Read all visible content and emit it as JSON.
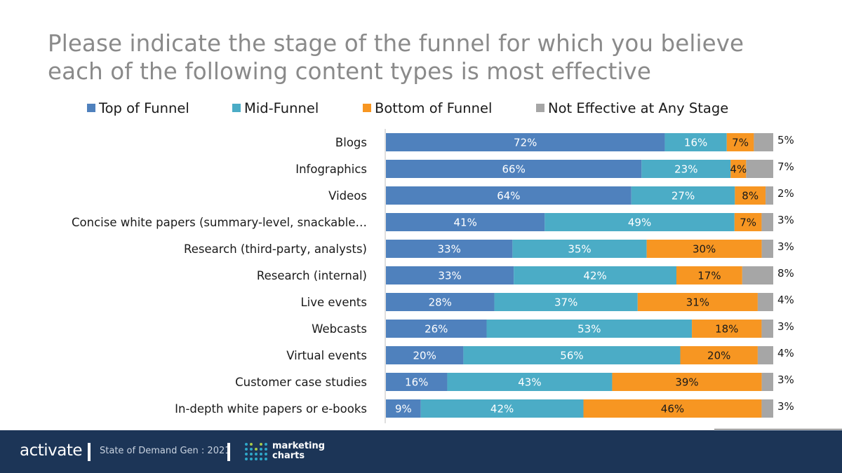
{
  "title_lines": [
    "Please indicate the stage of the funnel for which you believe",
    "each of the following content types is most effective"
  ],
  "legend": [
    {
      "label": "Top of Funnel",
      "color": "#4f81bd"
    },
    {
      "label": "Mid-Funnel",
      "color": "#4bacc6"
    },
    {
      "label": "Bottom of Funnel",
      "color": "#f79622"
    },
    {
      "label": "Not Effective at Any Stage",
      "color": "#a6a6a6"
    }
  ],
  "chart_data": {
    "type": "bar",
    "orientation": "horizontal",
    "stacked": true,
    "title": "Please indicate the stage of the funnel for which you believe each of the following content types is most effective",
    "categories": [
      "Blogs",
      "Infographics",
      "Videos",
      "Concise white papers (summary-level, snackable…",
      "Research (third-party, analysts)",
      "Research (internal)",
      "Live events",
      "Webcasts",
      "Virtual events",
      "Customer case studies",
      "In-depth white papers or e-books"
    ],
    "series": [
      {
        "name": "Top of Funnel",
        "color": "#4f81bd",
        "values": [
          72,
          66,
          64,
          41,
          33,
          33,
          28,
          26,
          20,
          16,
          9
        ]
      },
      {
        "name": "Mid-Funnel",
        "color": "#4bacc6",
        "values": [
          16,
          23,
          27,
          49,
          35,
          42,
          37,
          53,
          56,
          43,
          42
        ]
      },
      {
        "name": "Bottom of Funnel",
        "color": "#f79622",
        "values": [
          7,
          4,
          8,
          7,
          30,
          17,
          31,
          18,
          20,
          39,
          46
        ]
      },
      {
        "name": "Not Effective at Any Stage",
        "color": "#a6a6a6",
        "values": [
          5,
          7,
          2,
          3,
          3,
          8,
          4,
          3,
          4,
          3,
          3
        ]
      }
    ],
    "value_suffix": "%",
    "legend_position": "top",
    "grid": false
  },
  "footer": {
    "brand": "activate",
    "report": "State of Demand Gen : 2021",
    "partner_line1": "marketing",
    "partner_line2": "charts"
  }
}
